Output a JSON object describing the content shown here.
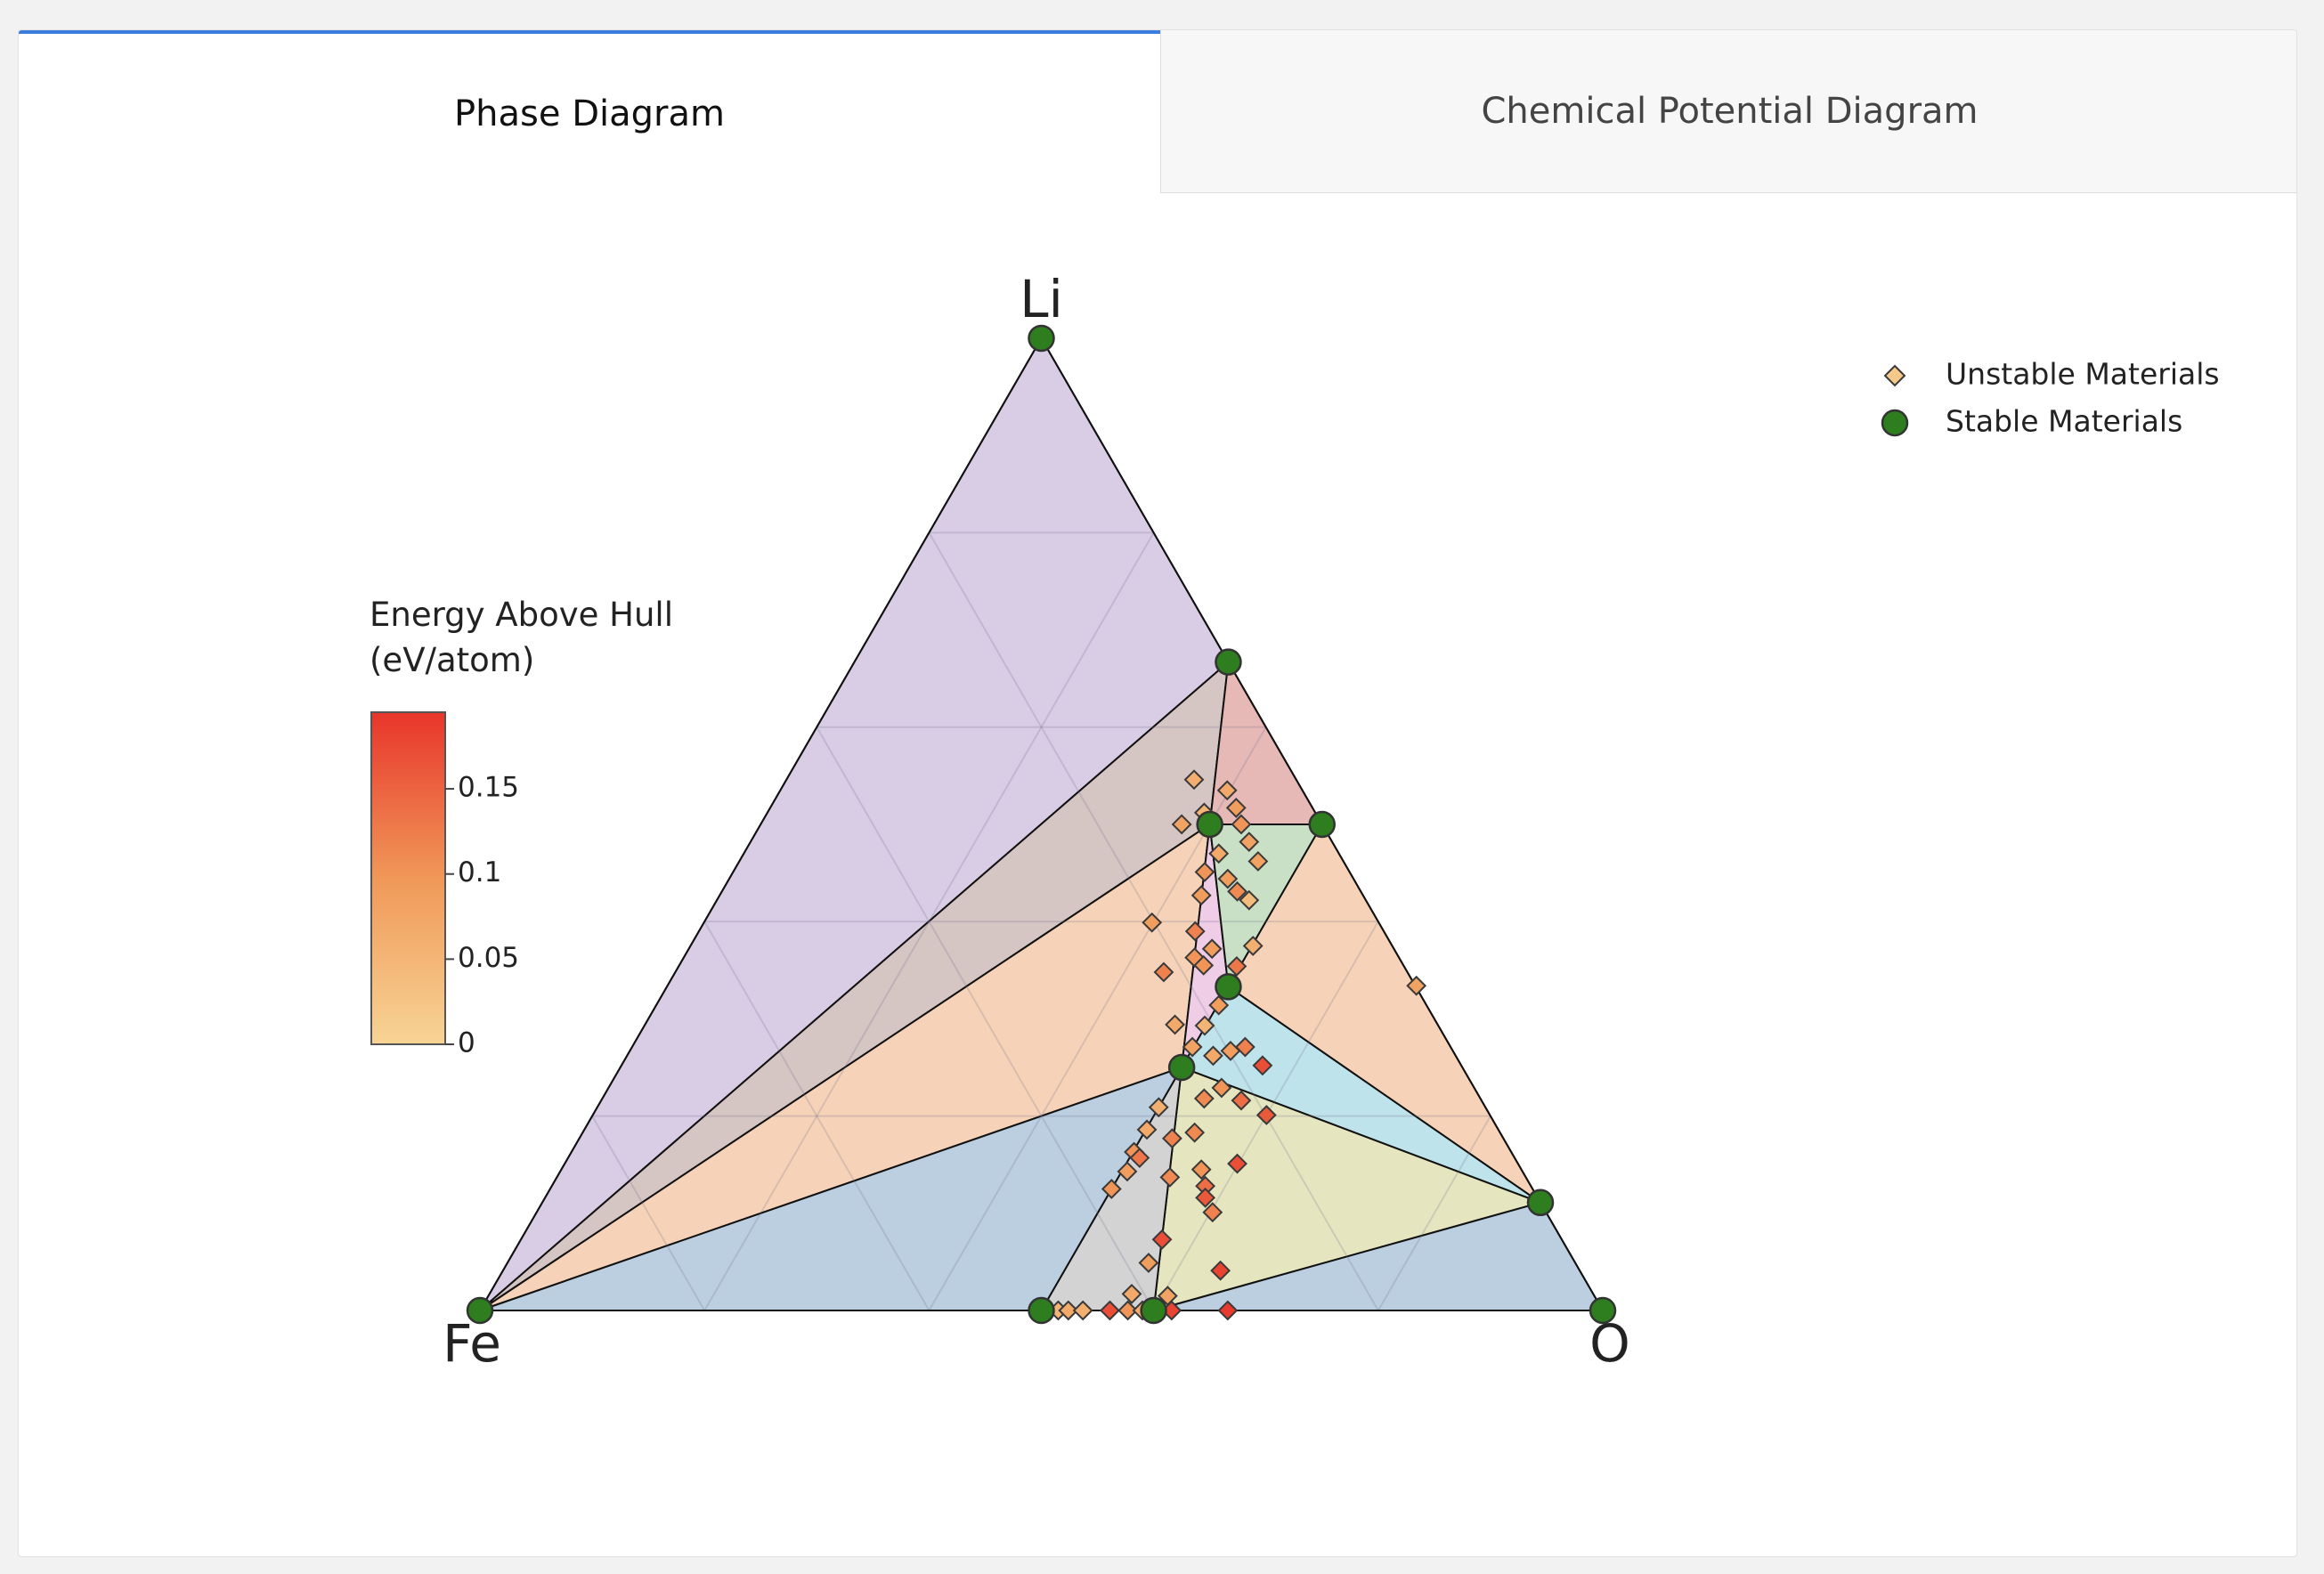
{
  "tabs": [
    "Phase Diagram",
    "Chemical Potential Diagram"
  ],
  "chart_data": {
    "type": "ternary",
    "axes": {
      "top": "Li",
      "left": "Fe",
      "right": "O"
    },
    "ticks": [
      0.2,
      0.4,
      0.6,
      0.8
    ],
    "grid": true,
    "legend": "top-right",
    "colorbar": {
      "title": [
        "Energy Above Hull",
        "(eV/atom)"
      ],
      "lim": [
        0,
        0.195
      ],
      "ticks": [
        0,
        0.05,
        0.1,
        0.15
      ],
      "colors": [
        "#f7d495",
        "#f09858",
        "#e8352b"
      ]
    },
    "series": [
      {
        "name": "Unstable Materials",
        "marker": "diamond",
        "color": "#f5c98a",
        "li": [
          0.546,
          0.535,
          0.517,
          0.5,
          0.5,
          0.512,
          0.482,
          0.47,
          0.462,
          0.451,
          0.444,
          0.422,
          0.427,
          0.431,
          0.399,
          0.39,
          0.375,
          0.372,
          0.348,
          0.363,
          0.355,
          0.354,
          0.314,
          0.294,
          0.293,
          0.271,
          0.262,
          0.267,
          0.271,
          0.252,
          0.229,
          0.218,
          0.209,
          0.216,
          0.201,
          0.186,
          0.177,
          0.183,
          0.163,
          0.157,
          0.143,
          0.145,
          0.151,
          0.137,
          0.128,
          0.125,
          0.116,
          0.101,
          0.073,
          0.049,
          0.041,
          0.017,
          0.015,
          0,
          0,
          0,
          0,
          0,
          0,
          0,
          0,
          0.334
        ],
        "o": [
          0.363,
          0.398,
          0.415,
          0.375,
          0.428,
          0.389,
          0.444,
          0.423,
          0.462,
          0.42,
          0.444,
          0.474,
          0.429,
          0.459,
          0.399,
          0.442,
          0.501,
          0.466,
          0.435,
          0.455,
          0.467,
          0.497,
          0.501,
          0.472,
          0.499,
          0.499,
          0.522,
          0.535,
          0.546,
          0.571,
          0.546,
          0.536,
          0.5,
          0.57,
          0.6,
          0.501,
          0.528,
          0.545,
          0.501,
          0.509,
          0.505,
          0.57,
          0.599,
          0.546,
          0.582,
          0.5,
          0.588,
          0.602,
          0.571,
          0.571,
          0.639,
          0.572,
          0.605,
          0.515,
          0.524,
          0.537,
          0.561,
          0.577,
          0.59,
          0.616,
          0.666,
          0.667
        ],
        "values": [
          0.06,
          0.07,
          0.09,
          0.08,
          0.1,
          0.05,
          0.08,
          0.07,
          0.08,
          0.1,
          0.09,
          0.04,
          0.09,
          0.11,
          0.09,
          0.12,
          0.06,
          0.09,
          0.12,
          0.1,
          0.1,
          0.13,
          0.09,
          0.07,
          0.05,
          0.08,
          0.07,
          0.09,
          0.12,
          0.17,
          0.1,
          0.11,
          0.06,
          0.14,
          0.16,
          0.07,
          0.12,
          0.11,
          0.1,
          0.13,
          0.09,
          0.1,
          0.17,
          0.11,
          0.14,
          0.1,
          0.16,
          0.12,
          0.17,
          0.09,
          0.18,
          0.07,
          0.08,
          0.05,
          0.07,
          0.06,
          0.17,
          0.1,
          0.06,
          0.18,
          0.19,
          0.08
        ]
      },
      {
        "name": "Stable Materials",
        "marker": "circle",
        "color": "#2e7d1f",
        "li": [
          0,
          1,
          0,
          0.667,
          0.5,
          0.5,
          0.333,
          0.25,
          0.111,
          0,
          0
        ],
        "o": [
          0,
          0,
          1,
          0.333,
          0.4,
          0.5,
          0.5,
          0.5,
          0.889,
          0.5,
          0.6
        ]
      }
    ],
    "facets": [
      {
        "vertices": [
          0,
          1,
          3
        ],
        "color": "#d9cce5"
      },
      {
        "vertices": [
          0,
          3,
          4
        ],
        "color": "#d5c5c3"
      },
      {
        "vertices": [
          3,
          5,
          4
        ],
        "color": "#e6b9b6"
      },
      {
        "vertices": [
          0,
          4,
          7
        ],
        "color": "#f6d3b8"
      },
      {
        "vertices": [
          4,
          6,
          7
        ],
        "color": "#efcde6"
      },
      {
        "vertices": [
          4,
          5,
          6
        ],
        "color": "#cae0c6"
      },
      {
        "vertices": [
          5,
          8,
          6
        ],
        "color": "#f6d3b8"
      },
      {
        "vertices": [
          6,
          8,
          7
        ],
        "color": "#bfe3ea"
      },
      {
        "vertices": [
          7,
          8,
          10
        ],
        "color": "#e5e6bf"
      },
      {
        "vertices": [
          7,
          10,
          9
        ],
        "color": "#d3d3d3"
      },
      {
        "vertices": [
          0,
          7,
          9
        ],
        "color": "#bbcfe1"
      },
      {
        "vertices": [
          10,
          8,
          2
        ],
        "color": "#bbcfe1"
      }
    ]
  }
}
